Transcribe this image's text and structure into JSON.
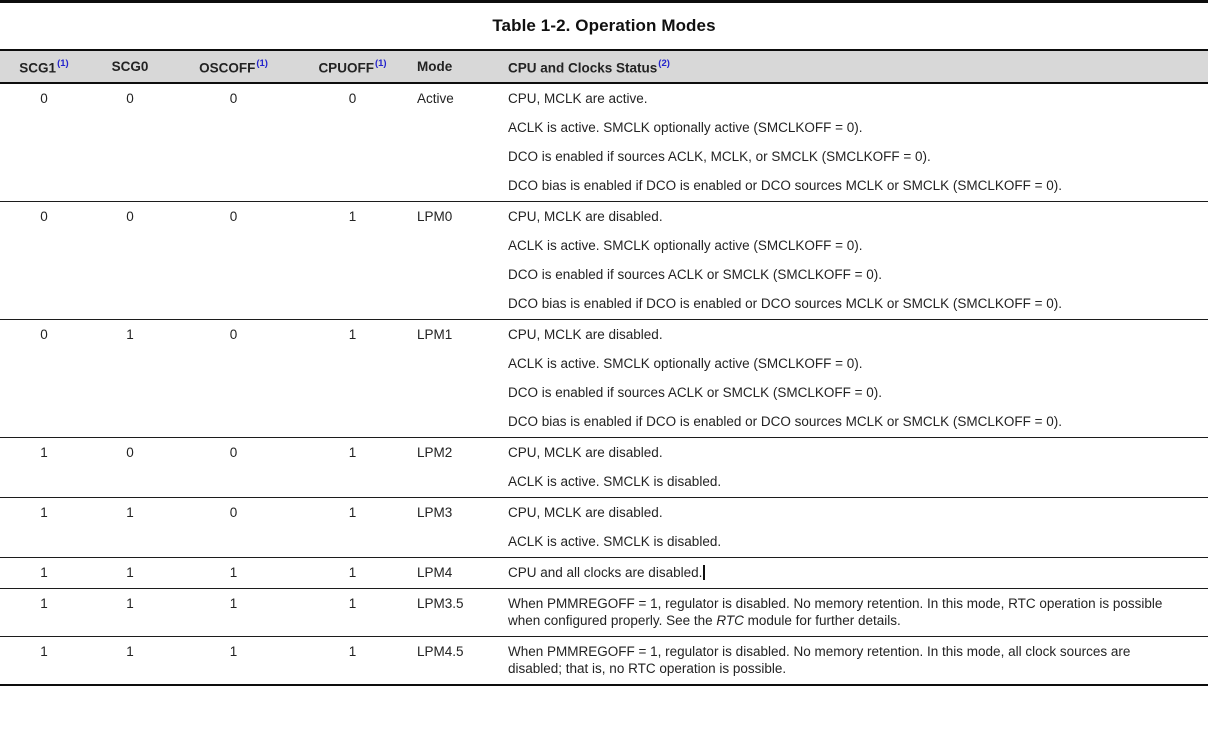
{
  "title": "Table 1-2. Operation Modes",
  "colors": {
    "header_bg": "#d8d8d8",
    "superscript": "#2323cd",
    "text": "#232323",
    "border": "#0d0d0d"
  },
  "table": {
    "headers": [
      {
        "key": "scg1",
        "label": "SCG1",
        "sup": "(1)"
      },
      {
        "key": "scg0",
        "label": "SCG0",
        "sup": ""
      },
      {
        "key": "oscoff",
        "label": "OSCOFF",
        "sup": "(1)"
      },
      {
        "key": "cpuoff",
        "label": "CPUOFF",
        "sup": "(1)"
      },
      {
        "key": "mode",
        "label": "Mode",
        "sup": ""
      },
      {
        "key": "status",
        "label": "CPU and Clocks Status",
        "sup": "(2)"
      }
    ],
    "rows": [
      {
        "scg1": "0",
        "scg0": "0",
        "oscoff": "0",
        "cpuoff": "0",
        "mode": "Active",
        "caret": false,
        "status": [
          "CPU, MCLK are active.",
          "ACLK is active. SMCLK optionally active (SMCLKOFF = 0).",
          "DCO is enabled if sources ACLK, MCLK, or SMCLK (SMCLKOFF = 0).",
          "DCO bias is enabled if DCO is enabled or DCO sources MCLK or SMCLK (SMCLKOFF = 0)."
        ]
      },
      {
        "scg1": "0",
        "scg0": "0",
        "oscoff": "0",
        "cpuoff": "1",
        "mode": "LPM0",
        "caret": false,
        "status": [
          "CPU, MCLK are disabled.",
          "ACLK is active. SMCLK optionally active (SMCLKOFF = 0).",
          "DCO is enabled if sources ACLK or SMCLK (SMCLKOFF = 0).",
          "DCO bias is enabled if DCO is enabled or DCO sources MCLK or SMCLK (SMCLKOFF = 0)."
        ]
      },
      {
        "scg1": "0",
        "scg0": "1",
        "oscoff": "0",
        "cpuoff": "1",
        "mode": "LPM1",
        "caret": false,
        "status": [
          "CPU, MCLK are disabled.",
          "ACLK is active. SMCLK optionally active (SMCLKOFF = 0).",
          "DCO is enabled if sources ACLK or SMCLK (SMCLKOFF = 0).",
          "DCO bias is enabled if DCO is enabled or DCO sources MCLK or SMCLK (SMCLKOFF = 0)."
        ]
      },
      {
        "scg1": "1",
        "scg0": "0",
        "oscoff": "0",
        "cpuoff": "1",
        "mode": "LPM2",
        "caret": false,
        "status": [
          "CPU, MCLK are disabled.",
          "ACLK is active. SMCLK is disabled."
        ]
      },
      {
        "scg1": "1",
        "scg0": "1",
        "oscoff": "0",
        "cpuoff": "1",
        "mode": "LPM3",
        "caret": false,
        "status": [
          "CPU, MCLK are disabled.",
          "ACLK is active. SMCLK is disabled."
        ]
      },
      {
        "scg1": "1",
        "scg0": "1",
        "oscoff": "1",
        "cpuoff": "1",
        "mode": "LPM4",
        "caret": true,
        "status": [
          "CPU and all clocks are disabled."
        ]
      },
      {
        "scg1": "1",
        "scg0": "1",
        "oscoff": "1",
        "cpuoff": "1",
        "mode": "LPM3.5",
        "caret": false,
        "status": [
          {
            "segments": [
              {
                "text": "When PMMREGOFF = 1, regulator is disabled. No memory retention. In this mode, RTC operation is possible when configured properly. See the "
              },
              {
                "text": "RTC",
                "italic": true
              },
              {
                "text": " module for further details."
              }
            ]
          }
        ]
      },
      {
        "scg1": "1",
        "scg0": "1",
        "oscoff": "1",
        "cpuoff": "1",
        "mode": "LPM4.5",
        "caret": false,
        "status": [
          "When PMMREGOFF = 1, regulator is disabled. No memory retention. In this mode, all clock sources are disabled; that is, no RTC operation is possible."
        ]
      }
    ]
  }
}
